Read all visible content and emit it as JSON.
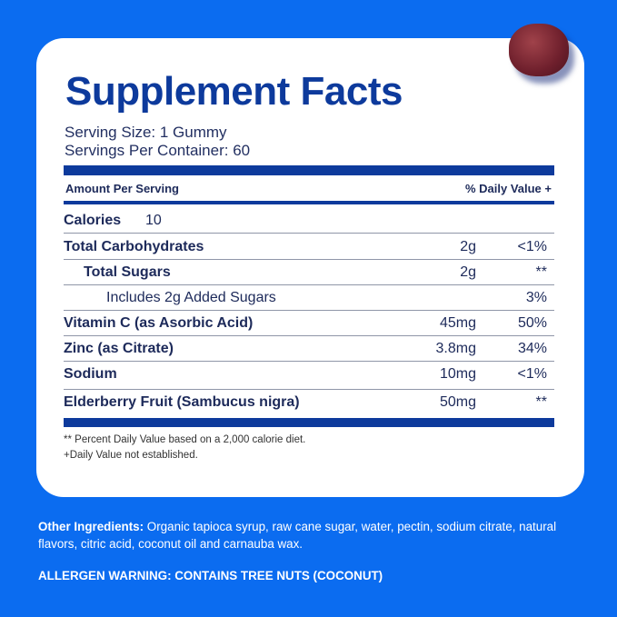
{
  "title": "Supplement Facts",
  "serving_size": "Serving Size: 1 Gummy",
  "servings_per_container": "Servings Per Container: 60",
  "header": {
    "amount": "Amount Per Serving",
    "dv": "% Daily Value +"
  },
  "calories": {
    "label": "Calories",
    "value": "10"
  },
  "rows": [
    {
      "label": "Total Carbohydrates",
      "amount": "2g",
      "dv": "<1%"
    },
    {
      "label": "Total Sugars",
      "amount": "2g",
      "dv": "**"
    },
    {
      "label": "Includes 2g Added Sugars",
      "amount": "",
      "dv": "3%"
    },
    {
      "label": "Vitamin C (as Asorbic Acid)",
      "amount": "45mg",
      "dv": "50%"
    },
    {
      "label": "Zinc (as Citrate)",
      "amount": "3.8mg",
      "dv": "34%"
    },
    {
      "label": "Sodium",
      "amount": "10mg",
      "dv": "<1%"
    },
    {
      "label": "Elderberry Fruit (Sambucus nigra)",
      "amount": "50mg",
      "dv": "**"
    }
  ],
  "footnotes": [
    "** Percent Daily Value based on a 2,000 calorie diet.",
    "+Daily Value not established."
  ],
  "other_ingredients": {
    "label": "Other Ingredients:",
    "text": " Organic tapioca syrup, raw cane sugar, water, pectin, sodium citrate, natural flavors, citric acid, coconut oil and carnauba wax."
  },
  "allergen": "ALLERGEN WARNING: CONTAINS TREE NUTS (COCONUT)",
  "colors": {
    "background": "#0b6cf0",
    "label_blue": "#0d3a9c"
  }
}
